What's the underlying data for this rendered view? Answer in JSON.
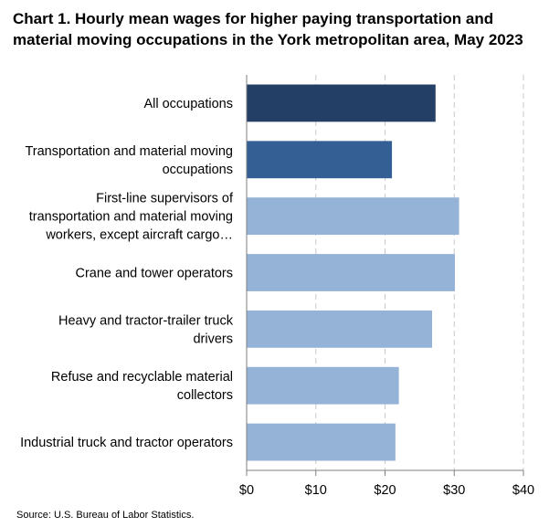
{
  "chart_data": {
    "type": "bar",
    "orientation": "horizontal",
    "title": "Chart 1. Hourly mean wages for higher paying transportation and material moving occupations in the York metropolitan area, May 2023",
    "categories": [
      [
        "All occupations"
      ],
      [
        "Transportation and material moving",
        "occupations"
      ],
      [
        "First-line supervisors of",
        "transportation and material moving",
        "workers, except aircraft cargo…"
      ],
      [
        "Crane and tower operators"
      ],
      [
        "Heavy and tractor-trailer truck",
        "drivers"
      ],
      [
        "Refuse and recyclable material",
        "collectors"
      ],
      [
        "Industrial truck and tractor operators"
      ]
    ],
    "values": [
      27.3,
      21.0,
      30.7,
      30.1,
      26.8,
      22.0,
      21.5
    ],
    "bar_colors": [
      "#243f66",
      "#345f95",
      "#95b3d7",
      "#95b3d7",
      "#95b3d7",
      "#95b3d7",
      "#95b3d7"
    ],
    "xlim": [
      0,
      40
    ],
    "x_ticks": [
      0,
      10,
      20,
      30,
      40
    ],
    "x_tick_labels": [
      "$0",
      "$10",
      "$20",
      "$30",
      "$40"
    ],
    "grid": "vertical dashed",
    "gridline_color": "#c8c8c8",
    "source": "Source: U.S. Bureau of Labor Statistics."
  }
}
